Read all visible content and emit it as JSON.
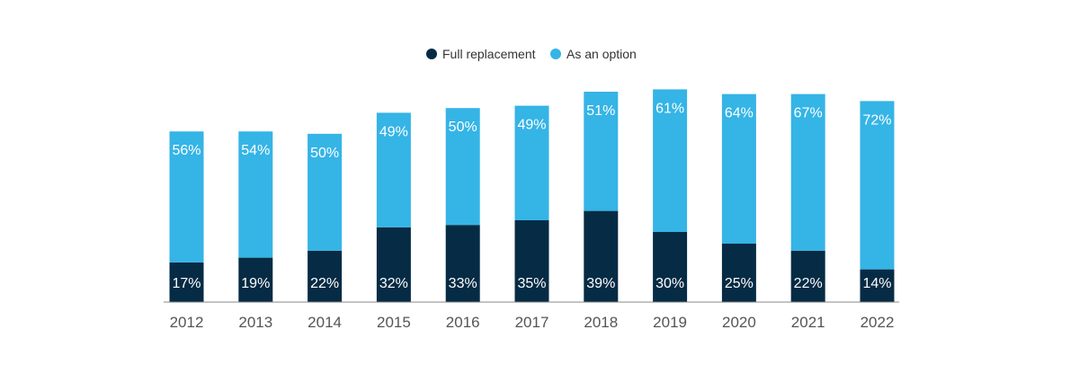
{
  "chart_data": {
    "type": "bar",
    "stacked": true,
    "categories": [
      "2012",
      "2013",
      "2014",
      "2015",
      "2016",
      "2017",
      "2018",
      "2019",
      "2020",
      "2021",
      "2022"
    ],
    "series": [
      {
        "name": "Full replacement",
        "color": "#062b45",
        "values": [
          17,
          19,
          22,
          32,
          33,
          35,
          39,
          30,
          25,
          22,
          14
        ],
        "labels": [
          "17%",
          "19%",
          "22%",
          "32%",
          "33%",
          "35%",
          "39%",
          "30%",
          "25%",
          "22%",
          "14%"
        ]
      },
      {
        "name": "As an option",
        "color": "#35b4e6",
        "values": [
          56,
          54,
          50,
          49,
          50,
          49,
          51,
          61,
          64,
          67,
          72
        ],
        "labels": [
          "56%",
          "54%",
          "50%",
          "49%",
          "50%",
          "49%",
          "51%",
          "61%",
          "64%",
          "67%",
          "72%"
        ]
      }
    ],
    "legend_position": "top-center",
    "grid": false,
    "ylim": [
      0,
      100
    ],
    "title": "",
    "xlabel": "",
    "ylabel": ""
  }
}
